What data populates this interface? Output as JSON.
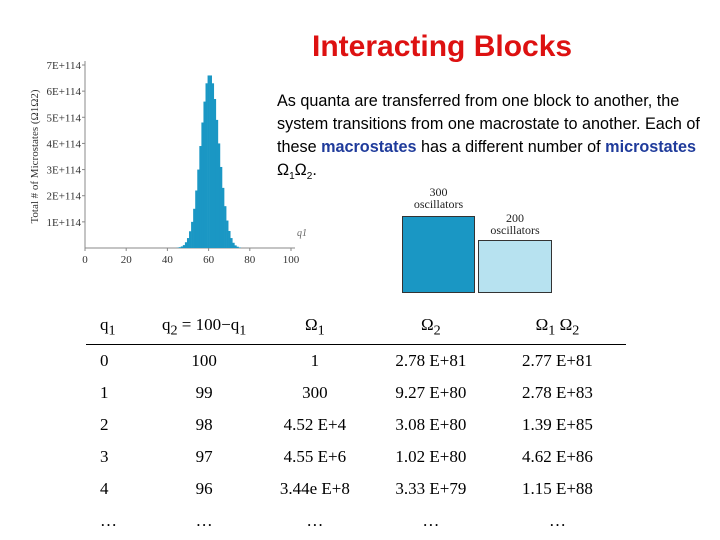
{
  "title": "Interacting Blocks",
  "description": {
    "part1": "As quanta are transferred from one block to another, the system transitions from one macrostate to another. Each of these ",
    "kw1": "macrostates",
    "part2": " has a different number of ",
    "kw2": "microstates",
    "part3": " Ω",
    "sub1": "1",
    "part4": "Ω",
    "sub2": "2",
    "part5": "."
  },
  "blocks": {
    "big_label_line1": "300",
    "big_label_line2": "oscillators",
    "small_label_line1": "200",
    "small_label_line2": "oscillators",
    "big_color": "#1a97c4",
    "small_color": "#b7e2f0"
  },
  "chart_data": {
    "type": "bar",
    "ylabel": "Total # of Microstates (Ω1Ω2)",
    "xlabel": "q1",
    "xlim": [
      0,
      100
    ],
    "ylim": [
      0,
      7e+114
    ],
    "xticks": [
      "0",
      "20",
      "40",
      "60",
      "80",
      "100"
    ],
    "yticks": [
      "1E+114",
      "2E+114",
      "3E+114",
      "4E+114",
      "5E+114",
      "6E+114",
      "7E+114"
    ],
    "bar_color": "#1a97c4",
    "series": [
      {
        "x": [
          44,
          45,
          46,
          47,
          48,
          49,
          50,
          51,
          52,
          53,
          54,
          55,
          56,
          57,
          58,
          59,
          60,
          61,
          62,
          63,
          64,
          65,
          66,
          67,
          68,
          69,
          70,
          71,
          72,
          73,
          74,
          75,
          76
        ],
        "values": [
          0.0,
          1e+112,
          3e+112,
          6e+112,
          1.1e+113,
          2.2e+113,
          3.8e+113,
          6.4e+113,
          1e+114,
          1.5e+114,
          2.2e+114,
          3e+114,
          3.9e+114,
          4.8e+114,
          5.6e+114,
          6.3e+114,
          6.6e+114,
          6.6e+114,
          6.3e+114,
          5.7e+114,
          4.9e+114,
          4e+114,
          3.1e+114,
          2.3e+114,
          1.6e+114,
          1.05e+114,
          6.5e+113,
          3.8e+113,
          2e+113,
          1e+113,
          5e+112,
          2e+112,
          0.0
        ]
      }
    ]
  },
  "table": {
    "headers": [
      "q",
      "q",
      "Ω",
      "Ω",
      "Ω"
    ],
    "header_subs": [
      "1",
      "2",
      "1",
      "2",
      "1"
    ],
    "header_tails": [
      "",
      " = 100−q",
      "",
      "",
      " Ω"
    ],
    "header_tail_subs": [
      "",
      "1",
      "",
      "",
      "2"
    ],
    "rows": [
      [
        "0",
        "100",
        "1",
        "2.78 E+81",
        "2.77 E+81"
      ],
      [
        "1",
        "99",
        "300",
        "9.27 E+80",
        "2.78 E+83"
      ],
      [
        "2",
        "98",
        "4.52 E+4",
        "3.08 E+80",
        "1.39 E+85"
      ],
      [
        "3",
        "97",
        "4.55 E+6",
        "1.02 E+80",
        "4.62 E+86"
      ],
      [
        "4",
        "96",
        "3.44e E+8",
        "3.33 E+79",
        "1.15 E+88"
      ],
      [
        "…",
        "…",
        "…",
        "…",
        "…"
      ]
    ]
  }
}
